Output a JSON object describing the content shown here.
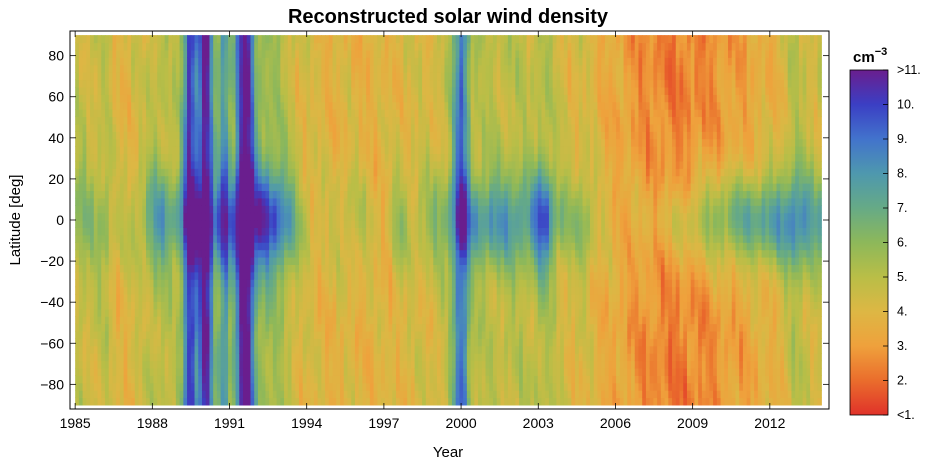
{
  "chart_data": {
    "type": "heatmap",
    "title": "Reconstructed solar wind density",
    "xlabel": "Year",
    "ylabel": "Latitude [deg]",
    "xlim": [
      1984.8,
      2014.3
    ],
    "ylim": [
      -92,
      92
    ],
    "data_x_range": [
      1985,
      2014
    ],
    "data_y_range": [
      -90,
      90
    ],
    "x_ticks": [
      1985,
      1988,
      1991,
      1994,
      1997,
      2000,
      2003,
      2006,
      2009,
      2012
    ],
    "y_ticks": [
      -80,
      -60,
      -40,
      -20,
      0,
      20,
      40,
      60,
      80
    ],
    "y_tick_labels": [
      "−80",
      "−60",
      "−40",
      "−20",
      "0",
      "20",
      "40",
      "60",
      "80"
    ],
    "colorbar": {
      "unit_base": "cm",
      "unit_exp": "−3",
      "min": 1,
      "max": 11,
      "ticks": [
        1,
        2,
        3,
        4,
        5,
        6,
        7,
        8,
        9,
        10,
        11
      ],
      "tick_labels": [
        "<1.",
        "2.",
        "3.",
        "4.",
        "5.",
        "6.",
        "7.",
        "8.",
        "9.",
        "10.",
        ">11."
      ],
      "colormap": [
        "#e0322a",
        "#ea6d2c",
        "#efa13c",
        "#ddb744",
        "#b9be47",
        "#8db85a",
        "#66aa86",
        "#4e98ae",
        "#4273cc",
        "#3b3fc4",
        "#6a1e8e"
      ]
    },
    "z_description_points": {
      "equatorial_band_lat_range": [
        -15,
        15
      ],
      "high_density_years": [
        1985,
        1986,
        1988,
        1989.5,
        1990,
        1991.5,
        1992.5,
        2000,
        2003.2
      ],
      "low_density_years": [
        2007.5,
        2009.5,
        2012
      ]
    }
  }
}
